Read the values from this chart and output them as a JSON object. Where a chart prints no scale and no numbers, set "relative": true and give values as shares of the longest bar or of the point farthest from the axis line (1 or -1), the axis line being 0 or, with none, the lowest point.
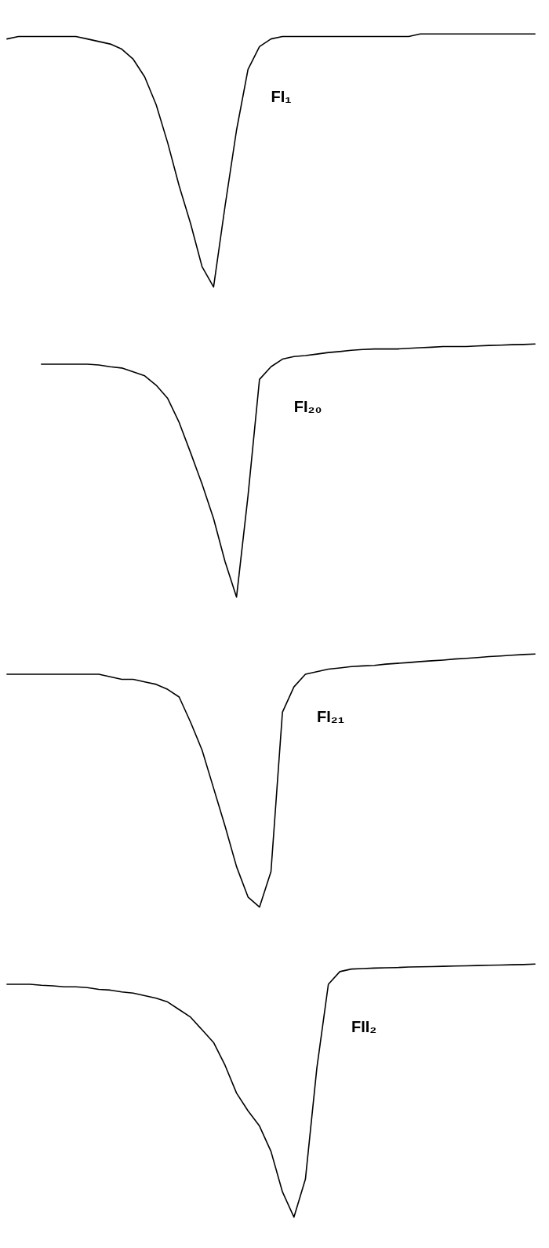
{
  "chart_data": [
    {
      "type": "line",
      "relative": true,
      "categories": [
        null,
        null,
        null,
        null,
        null,
        null,
        null,
        null,
        null,
        null,
        null,
        null,
        null,
        null,
        null,
        null,
        null,
        null,
        null,
        null,
        null,
        null,
        null,
        null,
        null,
        null,
        null,
        null,
        null,
        null,
        null,
        null,
        null,
        null,
        null,
        null,
        null,
        null,
        null,
        null,
        null,
        null,
        null,
        null,
        null,
        null,
        null
      ],
      "series": [
        {
          "name": "FI₁",
          "color": "#000000",
          "values": [
            0.98,
            0.99,
            0.99,
            0.99,
            0.99,
            0.99,
            0.99,
            0.98,
            0.97,
            0.96,
            0.94,
            0.9,
            0.83,
            0.72,
            0.57,
            0.4,
            0.25,
            0.08,
            0.0,
            0.32,
            0.62,
            0.86,
            0.95,
            0.98,
            0.99,
            0.99,
            0.99,
            0.99,
            0.99,
            0.99,
            0.99,
            0.99,
            0.99,
            0.99,
            0.99,
            0.99,
            1.0,
            1.0,
            1.0,
            1.0,
            1.0,
            1.0,
            1.0,
            1.0,
            1.0,
            1.0,
            1.0
          ]
        }
      ]
    },
    {
      "type": "line",
      "relative": true,
      "categories": [
        null,
        null,
        null,
        null,
        null,
        null,
        null,
        null,
        null,
        null,
        null,
        null,
        null,
        null,
        null,
        null,
        null,
        null,
        null,
        null,
        null,
        null,
        null,
        null,
        null,
        null,
        null,
        null,
        null,
        null,
        null,
        null,
        null,
        null,
        null,
        null,
        null,
        null,
        null,
        null,
        null,
        null,
        null,
        null,
        null,
        null,
        null
      ],
      "series": [
        {
          "name": "FI₂₀",
          "color": "#000000",
          "values": [
            null,
            null,
            null,
            0.92,
            0.92,
            0.92,
            0.92,
            0.92,
            0.917,
            0.91,
            0.905,
            0.89,
            0.874,
            0.837,
            0.785,
            0.69,
            0.57,
            0.446,
            0.31,
            0.14,
            0.0,
            0.4,
            0.86,
            0.91,
            0.94,
            0.95,
            0.954,
            0.96,
            0.966,
            0.97,
            0.975,
            0.978,
            0.98,
            0.98,
            0.98,
            0.983,
            0.985,
            0.987,
            0.99,
            0.99,
            0.99,
            0.992,
            0.994,
            0.995,
            0.997,
            0.998,
            1.0
          ]
        }
      ]
    },
    {
      "type": "line",
      "relative": true,
      "categories": [
        null,
        null,
        null,
        null,
        null,
        null,
        null,
        null,
        null,
        null,
        null,
        null,
        null,
        null,
        null,
        null,
        null,
        null,
        null,
        null,
        null,
        null,
        null,
        null,
        null,
        null,
        null,
        null,
        null,
        null,
        null,
        null,
        null,
        null,
        null,
        null,
        null,
        null,
        null,
        null,
        null,
        null,
        null,
        null,
        null,
        null,
        null
      ],
      "series": [
        {
          "name": "FI₂₁",
          "color": "#000000",
          "values": [
            0.92,
            0.92,
            0.92,
            0.92,
            0.92,
            0.92,
            0.92,
            0.92,
            0.92,
            0.91,
            0.9,
            0.9,
            0.89,
            0.88,
            0.86,
            0.83,
            0.73,
            0.62,
            0.47,
            0.32,
            0.16,
            0.04,
            0.0,
            0.14,
            0.77,
            0.87,
            0.92,
            0.93,
            0.94,
            0.945,
            0.95,
            0.953,
            0.955,
            0.96,
            0.963,
            0.966,
            0.97,
            0.973,
            0.976,
            0.98,
            0.983,
            0.986,
            0.99,
            0.992,
            0.995,
            0.998,
            1.0
          ]
        }
      ]
    },
    {
      "type": "line",
      "relative": true,
      "categories": [
        null,
        null,
        null,
        null,
        null,
        null,
        null,
        null,
        null,
        null,
        null,
        null,
        null,
        null,
        null,
        null,
        null,
        null,
        null,
        null,
        null,
        null,
        null,
        null,
        null,
        null,
        null,
        null,
        null,
        null,
        null,
        null,
        null,
        null,
        null,
        null,
        null,
        null,
        null,
        null,
        null,
        null,
        null,
        null,
        null,
        null,
        null
      ],
      "series": [
        {
          "name": "FII₂",
          "color": "#000000",
          "values": [
            0.92,
            0.92,
            0.92,
            0.916,
            0.914,
            0.91,
            0.91,
            0.907,
            0.9,
            0.897,
            0.89,
            0.885,
            0.875,
            0.865,
            0.85,
            0.82,
            0.79,
            0.74,
            0.69,
            0.6,
            0.49,
            0.42,
            0.36,
            0.26,
            0.1,
            0.0,
            0.15,
            0.59,
            0.92,
            0.97,
            0.98,
            0.982,
            0.984,
            0.985,
            0.986,
            0.988,
            0.989,
            0.99,
            0.991,
            0.992,
            0.993,
            0.994,
            0.995,
            0.996,
            0.997,
            0.998,
            1.0
          ]
        }
      ]
    }
  ]
}
